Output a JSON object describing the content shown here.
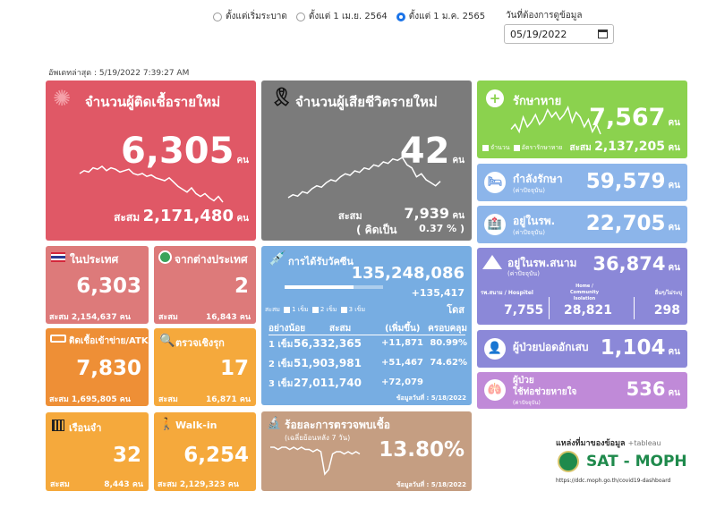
{
  "filters": {
    "options": [
      "ตั้งแต่เริ่มระบาด",
      "ตั้งแต่ 1 เม.ย. 2564",
      "ตั้งแต่ 1 ม.ค. 2565"
    ],
    "selected_index": 2,
    "date_label": "วันที่ต้องการดูข้อมูล",
    "date_value": "05/19/2022"
  },
  "updated": "อัพเดทล่าสุด : 5/19/2022 7:39:27 AM",
  "unit": "คน",
  "cumulative_label": "สะสม",
  "new_cases": {
    "title": "จำนวนผู้ติดเชื้อรายใหม่",
    "value": "6,305",
    "cumulative": "2,171,480"
  },
  "new_deaths": {
    "title": "จำนวนผู้เสียชีวิตรายใหม่",
    "value": "42",
    "cumulative": "7,939",
    "rate_label": "( คิดเป็น",
    "rate": "0.37 % )"
  },
  "recovered": {
    "title": "รักษาหาย",
    "value": "7,567",
    "legend_a": "จำนวน",
    "legend_b": "อัตรารักษาหาย",
    "cumulative": "2,137,205"
  },
  "treating": {
    "title": "กำลังรักษา",
    "sub": "(ค่าปัจจุบัน)",
    "value": "59,579"
  },
  "hospital": {
    "title": "อยู่ในรพ.",
    "sub": "(ค่าปัจจุบัน)",
    "value": "22,705"
  },
  "field_hospital": {
    "title": "อยู่ในรพ.สนาม",
    "sub": "(ค่าปัจจุบัน)",
    "value": "36,874",
    "col1_label": "รพ.สนาม / Hospitel",
    "col1_value": "7,755",
    "col2_label": "Home / Community Isolation",
    "col2_value": "28,821",
    "col3_label": "อื่นๆ/ไม่ระบุ",
    "col3_value": "298"
  },
  "domestic": {
    "title": "ในประเทศ",
    "value": "6,303",
    "cumulative": "2,154,637"
  },
  "imported": {
    "title": "จากต่างประเทศ",
    "value": "2",
    "cumulative": "16,843"
  },
  "vaccine": {
    "title": "การได้รับวัคซีน",
    "total": "135,248,086",
    "new": "+135,417",
    "dose_unit": "โดส",
    "legend_label": "สะสม",
    "legend_items": [
      "1 เข็ม",
      "2 เข็ม",
      "3 เข็ม"
    ],
    "headers": [
      "อย่างน้อย",
      "สะสม",
      "(เพิ่มขึ้น)",
      "ครอบคลุม"
    ],
    "rows": [
      {
        "dose": "1 เข็ม",
        "total": "56,332,365",
        "inc": "+11,871",
        "cover": "80.99%"
      },
      {
        "dose": "2 เข็ม",
        "total": "51,903,981",
        "inc": "+51,467",
        "cover": "74.62%"
      },
      {
        "dose": "3 เข็ม",
        "total": "27,011,740",
        "inc": "+72,079",
        "cover": ""
      }
    ],
    "data_date": "ข้อมูลวันที่ : 5/18/2022"
  },
  "severe_lung": {
    "title": "ผู้ป่วยปอดอักเสบ",
    "value": "1,104"
  },
  "ventilator": {
    "title": "ผู้ป่วย",
    "title2": "ใช้ท่อช่วยหายใจ",
    "sub": "(ค่าปัจจุบัน)",
    "value": "536"
  },
  "atk": {
    "title": "ติดเชื้อเข้าข่าย/ATK",
    "value": "7,830",
    "cumulative": "1,695,805"
  },
  "active_search": {
    "title": "ตรวจเชิงรุก",
    "value": "17",
    "cumulative": "16,871"
  },
  "prison": {
    "title": "เรือนจำ",
    "value": "32",
    "cumulative": "8,443"
  },
  "walkin": {
    "title": "Walk-in",
    "value": "6,254",
    "cumulative": "2,129,323"
  },
  "positivity": {
    "title": "ร้อยละการตรวจพบเชื้อ",
    "sub": "(เฉลี่ยย้อนหลัง 7 วัน)",
    "value": "13.80%",
    "data_date": "ข้อมูลวันที่ : 5/18/2022"
  },
  "source": {
    "label": "แหล่งที่มาของข้อมูล",
    "tableau": "+tableau",
    "brand": "SAT - MOPH",
    "url": "https://ddc.moph.go.th/covid19-dashboard"
  },
  "colors": {
    "red": "#e05866",
    "gray": "#7b7b7b",
    "green": "#8bd24e",
    "blue": "#8cb5ea",
    "purple": "#8b88d8",
    "salmon": "#dd7a7a",
    "orange": "#ee8f36",
    "yellow": "#f5a93c",
    "tan": "#c59e82",
    "vaxblue": "#77ade2"
  },
  "chart_data": [
    {
      "type": "line",
      "title": "จำนวนผู้ติดเชื้อรายใหม่",
      "values": [
        31,
        33,
        32,
        35,
        34,
        36,
        33,
        35,
        34,
        32,
        33,
        34,
        31,
        30,
        31,
        29,
        30,
        28,
        27,
        26,
        28,
        25,
        22,
        20,
        18,
        21,
        17,
        15,
        17,
        14,
        12,
        15,
        11
      ]
    },
    {
      "type": "line",
      "title": "จำนวนผู้เสียชีวิตรายใหม่",
      "values": [
        8,
        10,
        9,
        12,
        11,
        14,
        16,
        15,
        18,
        20,
        19,
        22,
        24,
        23,
        26,
        25,
        28,
        27,
        30,
        29,
        32,
        31,
        34,
        33,
        35,
        30,
        28,
        22,
        24,
        20,
        18,
        16,
        19
      ]
    },
    {
      "type": "line",
      "title": "รักษาหาย",
      "values": [
        10,
        14,
        8,
        20,
        12,
        16,
        22,
        14,
        18,
        26,
        20,
        24,
        18,
        22,
        28,
        16,
        24,
        20,
        12,
        18,
        8,
        14,
        6
      ]
    },
    {
      "type": "line",
      "title": "ร้อยละการตรวจพบเชื้อ",
      "values": [
        18,
        18,
        17,
        18,
        18,
        17,
        18,
        17,
        18,
        17,
        17,
        16,
        17,
        16,
        6,
        8,
        15,
        16,
        16,
        15,
        16,
        15,
        16,
        15
      ]
    }
  ]
}
